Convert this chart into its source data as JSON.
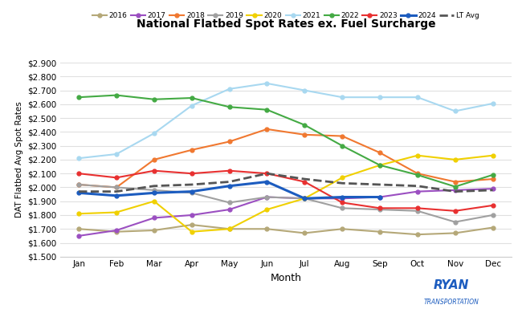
{
  "title": "National Flatbed Spot Rates ex. Fuel Surcharge",
  "xlabel": "Month",
  "ylabel": "DAT Flatbed Avg Spot Rates",
  "months": [
    "Jan",
    "Feb",
    "Mar",
    "Apr",
    "May",
    "Jun",
    "Jul",
    "Aug",
    "Sep",
    "Oct",
    "Nov",
    "Dec"
  ],
  "ylim": [
    1.5,
    2.9
  ],
  "yticks": [
    1.5,
    1.6,
    1.7,
    1.8,
    1.9,
    2.0,
    2.1,
    2.2,
    2.3,
    2.4,
    2.5,
    2.6,
    2.7,
    2.8,
    2.9
  ],
  "series": {
    "2016": {
      "color": "#b5a878",
      "values": [
        1.7,
        1.68,
        1.69,
        1.73,
        1.7,
        1.7,
        1.67,
        1.7,
        1.68,
        1.66,
        1.67,
        1.71
      ],
      "marker": "o",
      "linestyle": "-",
      "linewidth": 1.5,
      "markersize": 3.5
    },
    "2017": {
      "color": "#9b4fc1",
      "values": [
        1.65,
        1.69,
        1.78,
        1.8,
        1.84,
        1.93,
        1.92,
        1.92,
        1.93,
        1.97,
        1.98,
        1.99
      ],
      "marker": "o",
      "linestyle": "-",
      "linewidth": 1.5,
      "markersize": 3.5
    },
    "2018": {
      "color": "#f07830",
      "values": [
        2.02,
        2.0,
        2.2,
        2.27,
        2.33,
        2.42,
        2.38,
        2.37,
        2.25,
        2.1,
        2.04,
        2.06
      ],
      "marker": "o",
      "linestyle": "-",
      "linewidth": 1.5,
      "markersize": 3.5
    },
    "2019": {
      "color": "#a0a0a0",
      "values": [
        2.02,
        2.0,
        1.98,
        1.96,
        1.89,
        1.93,
        1.92,
        1.85,
        1.84,
        1.83,
        1.75,
        1.8
      ],
      "marker": "o",
      "linestyle": "-",
      "linewidth": 1.5,
      "markersize": 3.5
    },
    "2020": {
      "color": "#f0d000",
      "values": [
        1.81,
        1.82,
        1.9,
        1.68,
        1.7,
        1.84,
        1.92,
        2.07,
        2.16,
        2.23,
        2.2,
        2.23
      ],
      "marker": "o",
      "linestyle": "-",
      "linewidth": 1.5,
      "markersize": 3.5
    },
    "2021": {
      "color": "#a8d8f0",
      "values": [
        2.21,
        2.24,
        2.39,
        2.59,
        2.71,
        2.75,
        2.7,
        2.65,
        2.65,
        2.65,
        2.55,
        2.605
      ],
      "marker": "o",
      "linestyle": "-",
      "linewidth": 1.5,
      "markersize": 3.5
    },
    "2022": {
      "color": "#44aa44",
      "values": [
        2.65,
        2.665,
        2.635,
        2.645,
        2.58,
        2.56,
        2.45,
        2.3,
        2.16,
        2.09,
        2.005,
        2.09
      ],
      "marker": "o",
      "linestyle": "-",
      "linewidth": 1.5,
      "markersize": 3.5
    },
    "2023": {
      "color": "#e83030",
      "values": [
        2.1,
        2.07,
        2.12,
        2.1,
        2.12,
        2.1,
        2.04,
        1.89,
        1.85,
        1.85,
        1.83,
        1.87
      ],
      "marker": "o",
      "linestyle": "-",
      "linewidth": 1.5,
      "markersize": 3.5
    },
    "2024": {
      "color": "#1c5cbf",
      "values": [
        1.96,
        1.94,
        1.96,
        1.97,
        2.01,
        2.04,
        1.92,
        1.93,
        1.93,
        null,
        null,
        null
      ],
      "marker": "o",
      "linestyle": "-",
      "linewidth": 2.2,
      "markersize": 3.5
    },
    "LT Avg": {
      "color": "#555555",
      "values": [
        1.97,
        1.97,
        2.01,
        2.02,
        2.04,
        2.1,
        2.06,
        2.03,
        2.02,
        2.01,
        1.97,
        1.98
      ],
      "marker": null,
      "linestyle": "--",
      "linewidth": 2.0,
      "markersize": 0
    }
  },
  "legend_order": [
    "2016",
    "2017",
    "2018",
    "2019",
    "2020",
    "2021",
    "2022",
    "2023",
    "2024",
    "LT Avg"
  ],
  "background_color": "#ffffff",
  "grid_color": "#e0e0e0"
}
